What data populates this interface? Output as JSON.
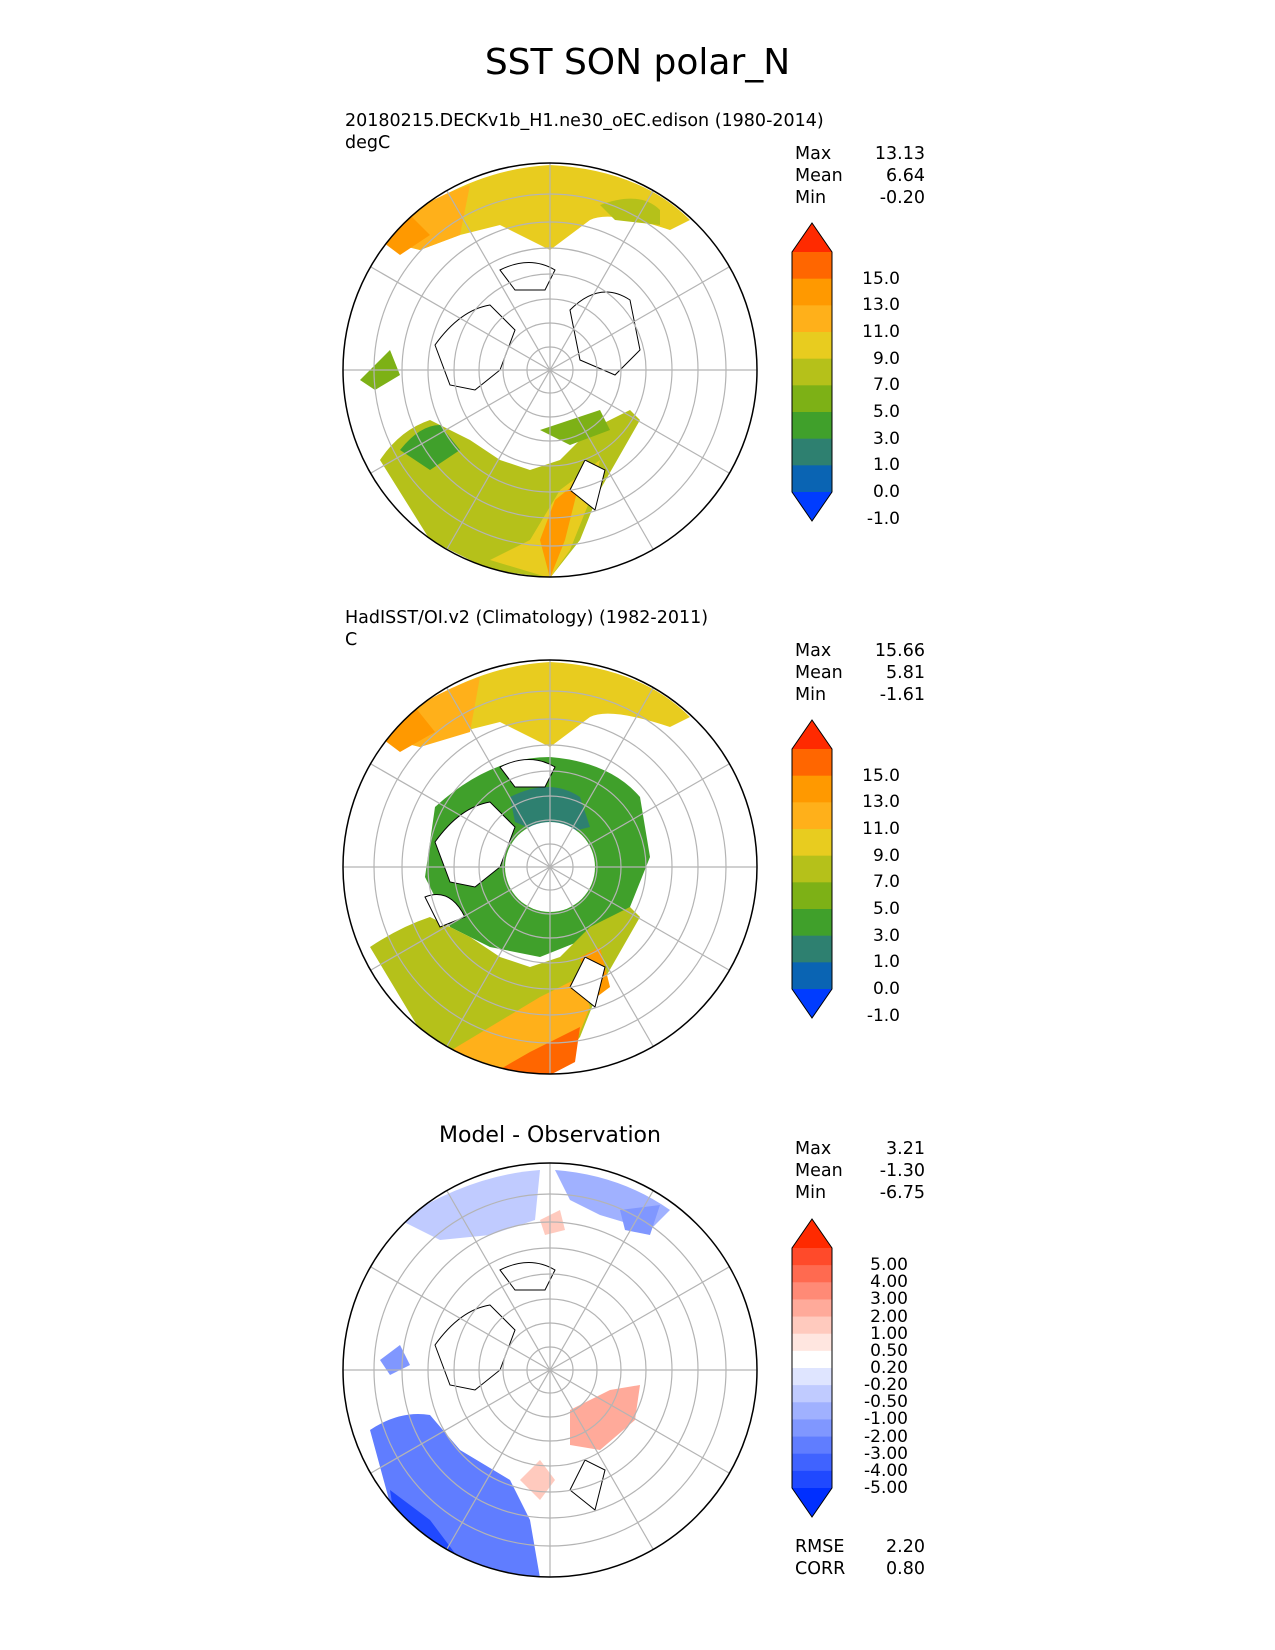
{
  "title": "SST SON polar_N",
  "panels": [
    {
      "id": "model",
      "title_lines": [
        "20180215.DECKv1b_H1.ne30_oEC.edison (1980-2014)",
        "degC"
      ],
      "stats": [
        {
          "label": "Max",
          "value": "13.13"
        },
        {
          "label": "Mean",
          "value": "6.64"
        },
        {
          "label": "Min",
          "value": "-0.20"
        }
      ]
    },
    {
      "id": "obs",
      "title_lines": [
        "HadISST/OI.v2 (Climatology) (1982-2011)",
        "C"
      ],
      "stats": [
        {
          "label": "Max",
          "value": "15.66"
        },
        {
          "label": "Mean",
          "value": "5.81"
        },
        {
          "label": "Min",
          "value": "-1.61"
        }
      ]
    },
    {
      "id": "diff",
      "title_lines": [
        "Model - Observation"
      ],
      "stats": [
        {
          "label": "Max",
          "value": "3.21"
        },
        {
          "label": "Mean",
          "value": "-1.30"
        },
        {
          "label": "Min",
          "value": "-6.75"
        }
      ],
      "metrics": [
        {
          "label": "RMSE",
          "value": "2.20"
        },
        {
          "label": "CORR",
          "value": "0.80"
        }
      ]
    }
  ],
  "colorbars": {
    "sst": {
      "labels": [
        "15.0",
        "13.0",
        "11.0",
        "9.0",
        "7.0",
        "5.0",
        "3.0",
        "1.0",
        "0.0",
        "-1.0"
      ],
      "colors_top_to_bottom": [
        "#ff2a00",
        "#ff6600",
        "#ff9900",
        "#ffb01a",
        "#e8cc1f",
        "#b5c11a",
        "#7db116",
        "#40a02b",
        "#2e8070",
        "#0a64b3",
        "#003cff"
      ]
    },
    "diff": {
      "labels": [
        "5.00",
        "4.00",
        "3.00",
        "2.00",
        "1.00",
        "0.50",
        "0.20",
        "-0.20",
        "-0.50",
        "-1.00",
        "-2.00",
        "-3.00",
        "-4.00",
        "-5.00"
      ],
      "colors_top_to_bottom": [
        "#ff2a00",
        "#ff4a2a",
        "#ff6a50",
        "#ff8a76",
        "#ffaa9a",
        "#ffcabe",
        "#ffe6e0",
        "#ffffff",
        "#dfe5ff",
        "#c0cbff",
        "#a0b1ff",
        "#8097ff",
        "#607dff",
        "#4063ff",
        "#2049ff",
        "#002fff"
      ]
    }
  },
  "chart_data": [
    {
      "type": "heatmap",
      "title": "20180215.DECKv1b_H1.ne30_oEC.edison (1980-2014)",
      "units": "degC",
      "projection": "north polar stereographic",
      "stats": {
        "max": 13.13,
        "mean": 6.64,
        "min": -0.2
      },
      "contour_levels": [
        -1.0,
        0.0,
        1.0,
        3.0,
        5.0,
        7.0,
        9.0,
        11.0,
        13.0,
        15.0
      ],
      "colorbar_extend": "both"
    },
    {
      "type": "heatmap",
      "title": "HadISST/OI.v2 (Climatology) (1982-2011)",
      "units": "C",
      "projection": "north polar stereographic",
      "stats": {
        "max": 15.66,
        "mean": 5.81,
        "min": -1.61
      },
      "contour_levels": [
        -1.0,
        0.0,
        1.0,
        3.0,
        5.0,
        7.0,
        9.0,
        11.0,
        13.0,
        15.0
      ],
      "colorbar_extend": "both"
    },
    {
      "type": "heatmap",
      "title": "Model - Observation",
      "projection": "north polar stereographic",
      "stats": {
        "max": 3.21,
        "mean": -1.3,
        "min": -6.75
      },
      "metrics": {
        "rmse": 2.2,
        "corr": 0.8
      },
      "contour_levels": [
        -5.0,
        -4.0,
        -3.0,
        -2.0,
        -1.0,
        -0.5,
        -0.2,
        0.2,
        0.5,
        1.0,
        2.0,
        3.0,
        4.0,
        5.0
      ],
      "colorbar_extend": "both"
    }
  ]
}
